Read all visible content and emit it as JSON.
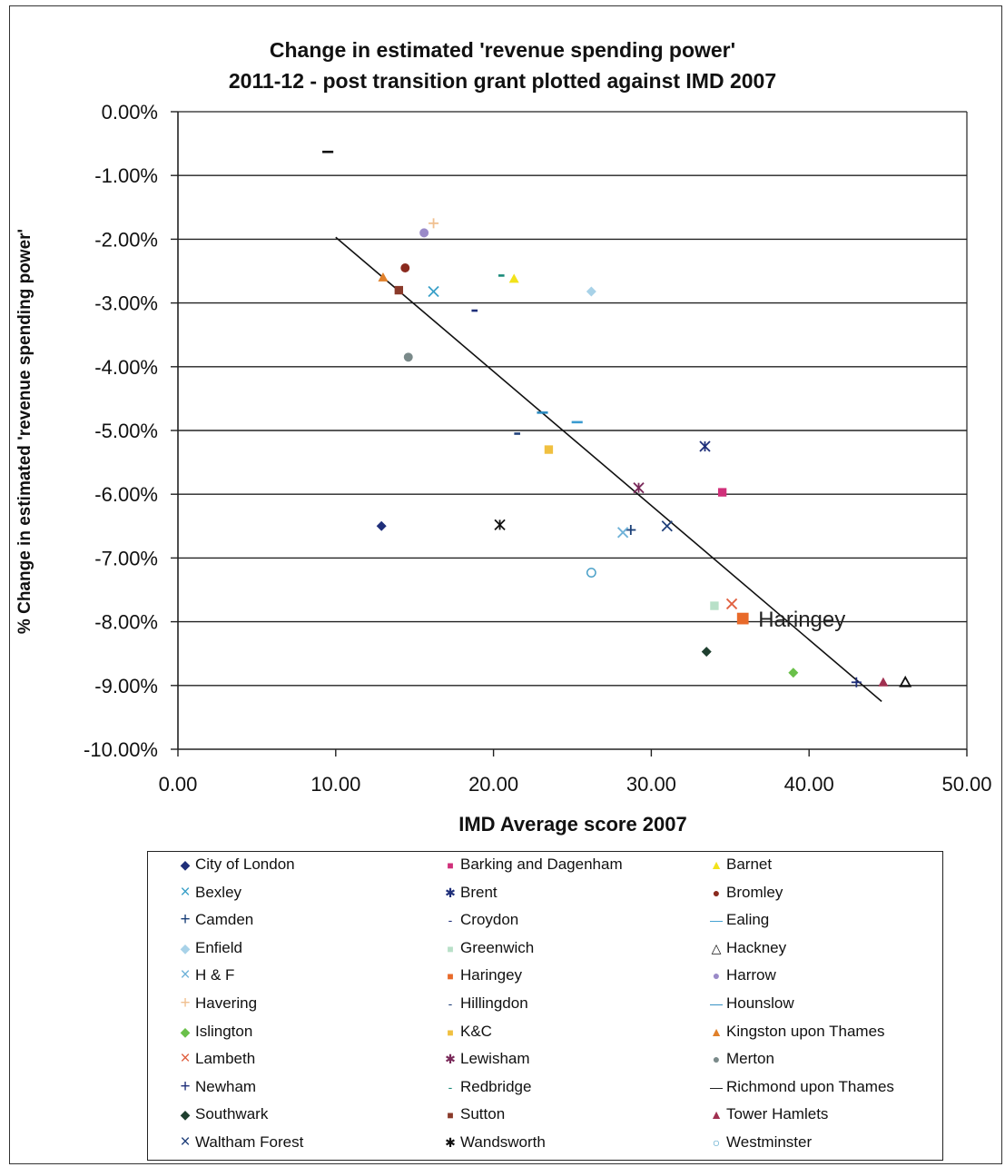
{
  "chart_data": {
    "type": "scatter",
    "title_line1": "Change in estimated 'revenue spending power'",
    "title_line2": "2011-12 - post transition grant plotted against IMD 2007",
    "xlabel": "IMD Average score 2007",
    "ylabel": "% Change in estimated 'revenue spending power'",
    "xlim": [
      0,
      50
    ],
    "ylim": [
      -10,
      0
    ],
    "x_ticks": [
      "0.00",
      "10.00",
      "20.00",
      "30.00",
      "40.00",
      "50.00"
    ],
    "y_ticks": [
      "0.00%",
      "-1.00%",
      "-2.00%",
      "-3.00%",
      "-4.00%",
      "-5.00%",
      "-6.00%",
      "-7.00%",
      "-8.00%",
      "-9.00%",
      "-10.00%"
    ],
    "grid": "horizontal",
    "legend_position": "bottom",
    "trendline": {
      "x": [
        10.0,
        44.6
      ],
      "y": [
        -1.97,
        -9.25
      ]
    },
    "annotation": {
      "text": "Haringey",
      "x": 35.8,
      "y": -7.95
    },
    "series": [
      {
        "name": "City of London",
        "x": 12.9,
        "y": -6.5,
        "marker": "diamond",
        "color": "#1f2f7a"
      },
      {
        "name": "Barking and Dagenham",
        "x": 34.5,
        "y": -5.97,
        "marker": "square",
        "color": "#d0307a"
      },
      {
        "name": "Barnet",
        "x": 21.3,
        "y": -2.62,
        "marker": "triangle",
        "color": "#f2e21a"
      },
      {
        "name": "Bexley",
        "x": 16.2,
        "y": -2.82,
        "marker": "x",
        "color": "#3aa0c8"
      },
      {
        "name": "Brent",
        "x": 33.4,
        "y": -5.25,
        "marker": "star",
        "color": "#1f2f7a"
      },
      {
        "name": "Bromley",
        "x": 14.4,
        "y": -2.45,
        "marker": "circle",
        "color": "#8a2a1e"
      },
      {
        "name": "Camden",
        "x": 28.7,
        "y": -6.56,
        "marker": "plus",
        "color": "#1a3f78"
      },
      {
        "name": "Croydon",
        "x": 18.8,
        "y": -3.12,
        "marker": "dash",
        "color": "#1f2f7a"
      },
      {
        "name": "Ealing",
        "x": 25.3,
        "y": -4.87,
        "marker": "dash-long",
        "color": "#3a9bd0"
      },
      {
        "name": "Enfield",
        "x": 26.2,
        "y": -2.82,
        "marker": "diamond",
        "color": "#a8d2e8"
      },
      {
        "name": "Greenwich",
        "x": 34.0,
        "y": -7.75,
        "marker": "square",
        "color": "#b8e0c8"
      },
      {
        "name": "Hackney",
        "x": 46.1,
        "y": -8.95,
        "marker": "triangle-open",
        "color": "#111111"
      },
      {
        "name": "H & F",
        "x": 28.2,
        "y": -6.6,
        "marker": "x",
        "color": "#6fb2d8"
      },
      {
        "name": "Haringey",
        "x": 35.8,
        "y": -7.95,
        "marker": "square",
        "color": "#e86a2a"
      },
      {
        "name": "Harrow",
        "x": 15.6,
        "y": -1.9,
        "marker": "circle",
        "color": "#9a8ac8"
      },
      {
        "name": "Havering",
        "x": 16.2,
        "y": -1.75,
        "marker": "plus",
        "color": "#f0c090"
      },
      {
        "name": "Hillingdon",
        "x": 21.5,
        "y": -5.05,
        "marker": "dash",
        "color": "#1f3f7a"
      },
      {
        "name": "Hounslow",
        "x": 23.1,
        "y": -4.72,
        "marker": "dash-long",
        "color": "#2a8ac0"
      },
      {
        "name": "Islington",
        "x": 39.0,
        "y": -8.8,
        "marker": "diamond",
        "color": "#6ac04a"
      },
      {
        "name": "K&C",
        "x": 23.5,
        "y": -5.3,
        "marker": "square",
        "color": "#f0c040"
      },
      {
        "name": "Kingston upon Thames",
        "x": 13.0,
        "y": -2.6,
        "marker": "triangle",
        "color": "#e0802a"
      },
      {
        "name": "Lambeth",
        "x": 35.1,
        "y": -7.72,
        "marker": "x",
        "color": "#e06040"
      },
      {
        "name": "Lewisham",
        "x": 29.2,
        "y": -5.9,
        "marker": "star",
        "color": "#7a2a5a"
      },
      {
        "name": "Merton",
        "x": 14.6,
        "y": -3.85,
        "marker": "circle",
        "color": "#7a8a8a"
      },
      {
        "name": "Newham",
        "x": 43.0,
        "y": -8.95,
        "marker": "plus",
        "color": "#1f2f7a"
      },
      {
        "name": "Redbridge",
        "x": 20.5,
        "y": -2.57,
        "marker": "dash",
        "color": "#1a8a7a"
      },
      {
        "name": "Richmond upon Thames",
        "x": 9.5,
        "y": -0.63,
        "marker": "dash-long",
        "color": "#111111"
      },
      {
        "name": "Southwark",
        "x": 33.5,
        "y": -8.47,
        "marker": "diamond",
        "color": "#1f3f2f"
      },
      {
        "name": "Sutton",
        "x": 14.0,
        "y": -2.8,
        "marker": "square",
        "color": "#8a3a2a"
      },
      {
        "name": "Tower Hamlets",
        "x": 44.7,
        "y": -8.95,
        "marker": "triangle",
        "color": "#a03050"
      },
      {
        "name": "Waltham Forest",
        "x": 31.0,
        "y": -6.5,
        "marker": "x",
        "color": "#1f3f7a"
      },
      {
        "name": "Wandsworth",
        "x": 20.4,
        "y": -6.48,
        "marker": "star",
        "color": "#111111"
      },
      {
        "name": "Westminster",
        "x": 26.2,
        "y": -7.23,
        "marker": "circle-open",
        "color": "#4aa0c8"
      }
    ]
  }
}
